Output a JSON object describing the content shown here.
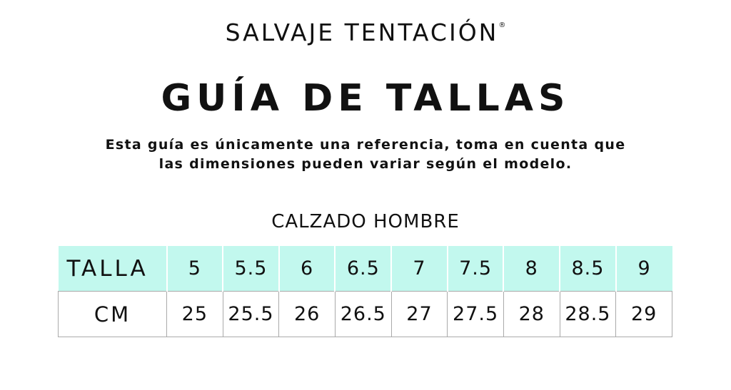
{
  "brand": "SALVAJE TENTACIÓN",
  "brand_mark": "®",
  "title": "GUÍA DE TALLAS",
  "description": [
    "Esta guía es únicamente una referencia, toma en cuenta que",
    "las dimensiones pueden variar según el modelo."
  ],
  "section": "CALZADO HOMBRE",
  "colors": {
    "header_row": "#c2f8ee"
  },
  "table": {
    "rows": [
      {
        "label": "TALLA",
        "values": [
          "5",
          "5.5",
          "6",
          "6.5",
          "7",
          "7.5",
          "8",
          "8.5",
          "9"
        ]
      },
      {
        "label": "CM",
        "values": [
          "25",
          "25.5",
          "26",
          "26.5",
          "27",
          "27.5",
          "28",
          "28.5",
          "29"
        ]
      }
    ]
  }
}
